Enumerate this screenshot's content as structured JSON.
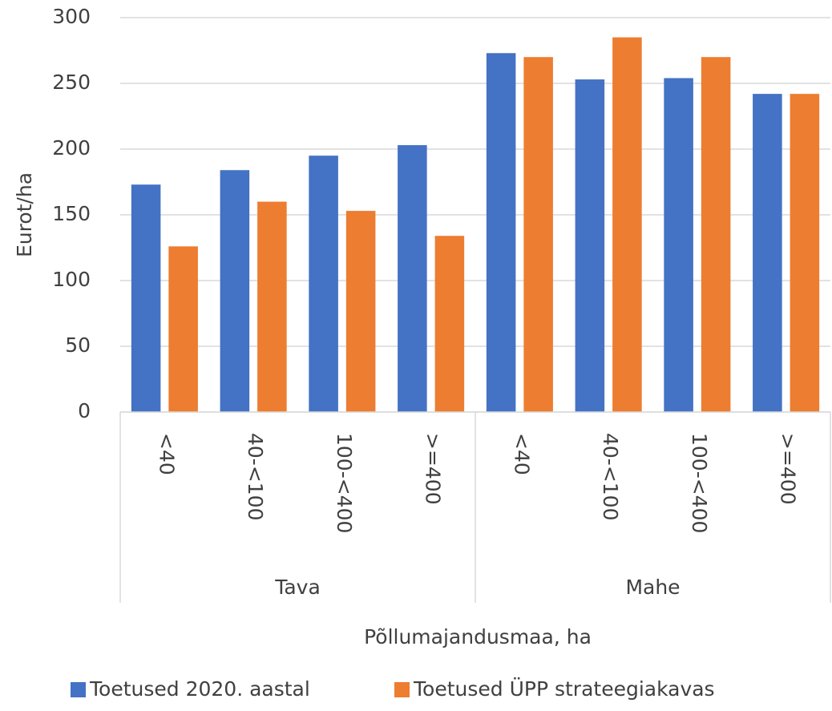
{
  "chart_data": {
    "type": "bar",
    "ylabel": "Eurot/ha",
    "xlabel": "Põllumajandusmaa, ha",
    "groups": [
      {
        "name": "Tava",
        "categories": [
          "<40",
          "40-<100",
          "100-<400",
          ">=400"
        ]
      },
      {
        "name": "Mahe",
        "categories": [
          "<40",
          "40-<100",
          "100-<400",
          ">=400"
        ]
      }
    ],
    "series": [
      {
        "name": "Toetused 2020. aastal",
        "color": "#4472c4",
        "values": [
          173,
          184,
          195,
          203,
          273,
          253,
          254,
          242
        ]
      },
      {
        "name": "Toetused ÜPP strateegiakavas",
        "color": "#ed7d31",
        "values": [
          126,
          160,
          153,
          134,
          270,
          285,
          270,
          242
        ]
      }
    ],
    "ylim": [
      0,
      300
    ],
    "yticks": [
      0,
      50,
      100,
      150,
      200,
      250,
      300
    ],
    "grid": true,
    "legend": "bottom"
  }
}
